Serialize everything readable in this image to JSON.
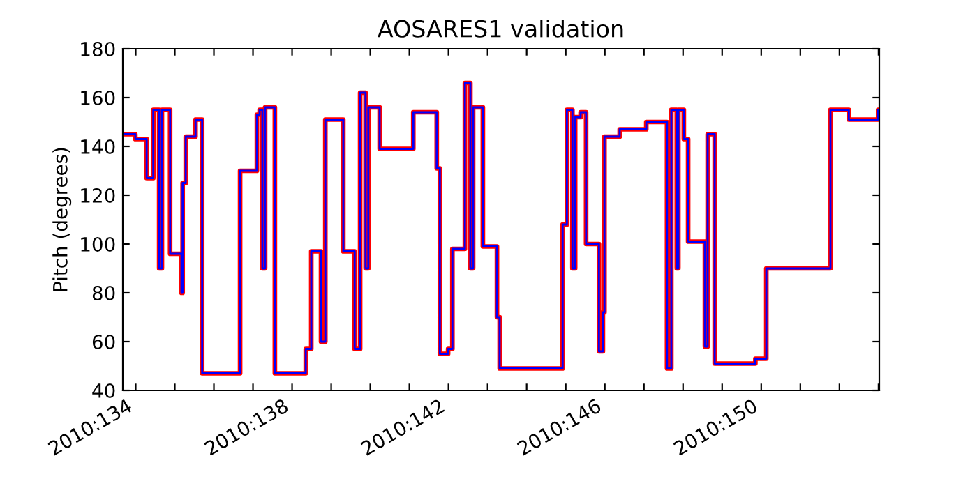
{
  "chart_data": {
    "type": "step",
    "title": "AOSARES1 validation",
    "ylabel": "Pitch (degrees)",
    "x": [
      "2010-05-13T16:05",
      "2010-05-13T23:46",
      "2010-05-14T06:43",
      "2010-05-14T10:48",
      "2010-05-14T14:24",
      "2010-05-14T16:05",
      "2010-05-14T21:07",
      "2010-05-15T04:05",
      "2010-05-15T04:48",
      "2010-05-15T06:43",
      "2010-05-15T12:43",
      "2010-05-15T16:48",
      "2010-05-16T16:05",
      "2010-05-17T02:24",
      "2010-05-17T04:05",
      "2010-05-17T05:46",
      "2010-05-17T07:26",
      "2010-05-17T13:26",
      "2010-05-18T08:24",
      "2010-05-18T11:46",
      "2010-05-18T17:46",
      "2010-05-18T20:24",
      "2010-05-19T07:26",
      "2010-05-19T14:24",
      "2010-05-19T17:46",
      "2010-05-19T21:07",
      "2010-05-19T22:48",
      "2010-05-20T05:46",
      "2010-05-21T02:24",
      "2010-05-21T16:48",
      "2010-05-21T18:43",
      "2010-05-21T23:46",
      "2010-05-22T02:24",
      "2010-05-22T10:05",
      "2010-05-22T13:26",
      "2010-05-22T15:07",
      "2010-05-22T21:07",
      "2010-05-23T05:46",
      "2010-05-23T07:26",
      "2010-05-24T22:05",
      "2010-05-25T00:43",
      "2010-05-25T04:05",
      "2010-05-25T05:46",
      "2010-05-25T09:07",
      "2010-05-25T12:29",
      "2010-05-25T20:24",
      "2010-05-25T22:48",
      "2010-05-25T23:46",
      "2010-05-26T09:07",
      "2010-05-27T01:26",
      "2010-05-27T14:10",
      "2010-05-27T16:48",
      "2010-05-27T20:10",
      "2010-05-27T21:07",
      "2010-05-28T00:29",
      "2010-05-28T03:07",
      "2010-05-28T13:26",
      "2010-05-28T15:07",
      "2010-05-28T19:26",
      "2010-05-29T20:24",
      "2010-05-30T03:07",
      "2010-05-31T18:29",
      "2010-06-01T05:46",
      "2010-06-01T23:46",
      "2010-06-02T00:29"
    ],
    "series": [
      {
        "color": "#ff0000",
        "values": [
          145,
          143,
          127,
          155,
          90,
          155,
          96,
          80,
          125,
          144,
          151,
          47,
          130,
          153,
          155,
          90,
          156,
          47,
          57,
          97,
          60,
          151,
          97,
          57,
          162,
          90,
          156,
          139,
          154,
          131,
          55,
          57,
          98,
          166,
          90,
          156,
          99,
          70,
          49,
          108,
          155,
          90,
          152,
          154,
          100,
          56,
          72,
          144,
          147,
          150,
          49,
          155,
          90,
          155,
          143,
          101,
          58,
          145,
          51,
          53,
          90,
          155,
          151,
          155,
          155
        ]
      },
      {
        "color": "#0000ff",
        "values": [
          145,
          143,
          127,
          155,
          90,
          155,
          96,
          80,
          125,
          144,
          151,
          47,
          130,
          153,
          155,
          90,
          156,
          47,
          57,
          97,
          60,
          151,
          97,
          57,
          162,
          90,
          156,
          139,
          154,
          131,
          55,
          57,
          98,
          166,
          90,
          156,
          99,
          70,
          49,
          108,
          155,
          90,
          152,
          154,
          100,
          56,
          72,
          144,
          147,
          150,
          49,
          155,
          90,
          155,
          143,
          101,
          58,
          145,
          51,
          53,
          90,
          155,
          151,
          155,
          155
        ]
      }
    ],
    "xlim": [
      "2010-05-13T16:05",
      "2010-06-02T00:29"
    ],
    "xticks": [
      {
        "value": "2010-05-14",
        "label": "2010:134"
      },
      {
        "value": "2010-05-15",
        "label": null
      },
      {
        "value": "2010-05-16",
        "label": null
      },
      {
        "value": "2010-05-17",
        "label": null
      },
      {
        "value": "2010-05-18",
        "label": "2010:138"
      },
      {
        "value": "2010-05-19",
        "label": null
      },
      {
        "value": "2010-05-20",
        "label": null
      },
      {
        "value": "2010-05-21",
        "label": null
      },
      {
        "value": "2010-05-22",
        "label": "2010:142"
      },
      {
        "value": "2010-05-23",
        "label": null
      },
      {
        "value": "2010-05-24",
        "label": null
      },
      {
        "value": "2010-05-25",
        "label": null
      },
      {
        "value": "2010-05-26",
        "label": "2010:146"
      },
      {
        "value": "2010-05-27",
        "label": null
      },
      {
        "value": "2010-05-28",
        "label": null
      },
      {
        "value": "2010-05-29",
        "label": null
      },
      {
        "value": "2010-05-30",
        "label": "2010:150"
      },
      {
        "value": "2010-05-31",
        "label": null
      },
      {
        "value": "2010-06-01",
        "label": null
      },
      {
        "value": "2010-06-02",
        "label": null
      }
    ],
    "ylim": [
      40,
      180
    ],
    "yticks": [
      40,
      60,
      80,
      100,
      120,
      140,
      160,
      180
    ],
    "grid": false,
    "legend": false
  }
}
